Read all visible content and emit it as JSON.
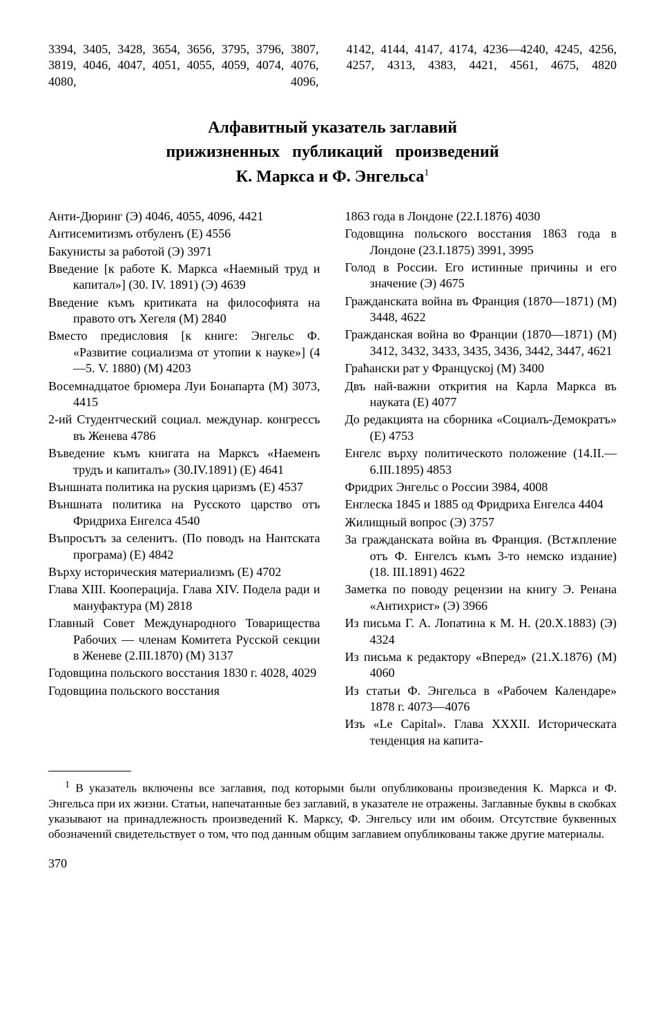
{
  "top": {
    "left": "3394, 3405, 3428, 3654, 3656, 3795, 3796, 3807, 3819, 4046, 4047, 4051, 4055, 4059, 4074, 4076, 4080, 4096,",
    "right": "4142, 4144, 4147, 4174, 4236—4240, 4245, 4256, 4257, 4313, 4383, 4421, 4561, 4675, 4820"
  },
  "heading": {
    "line1": "Алфавитный указатель заглавий",
    "line2": "прижизненных публикаций произведений",
    "line3": "К. Маркса и Ф. Энгельса",
    "note_mark": "1"
  },
  "left_entries": [
    "Анти-Дюринг (Э) 4046, 4055, 4096, 4421",
    "Антисемитизмъ отбуленъ (Е) 4556",
    "Бакунисты за работой (Э) 3971",
    "Введение [к работе К. Маркса «Наем­ный труд и капитал»] (30. IV. 1891) (Э) 4639",
    "Введение къмъ критиката на фило­со­фията на правото отъ Хегеля (М) 2840",
    "Вместо предисловия [к книге: Эн­гельс Ф. «Развитие социализма от утопии к науке»] (4—5. V. 1880) (М) 4203",
    "Восемнадцатое брюмера Луи Бона­парта (М) 3073, 4415",
    "2-ий Студентческий социал. между­нар. конгрессъ въ Женева 4786",
    "Въведение къмъ книгата на Марксъ «Наеменъ трудъ и капиталъ» (30.IV.1891) (Е) 4641",
    "Външната политика на руския ца­ризмъ (Е) 4537",
    "Външната политика на Русското цар­ство отъ Фридриха Енгелса 4540",
    "Въпросътъ за селенитъ. (По поводъ на Нантската програма) (Е) 4842",
    "Върху историческия материализмъ (Е) 4702",
    "Глава XIII. Кооперација. Глава XIV. Подела ради и мануфактура (М) 2818",
    "Главный Совет Международного То­варищества Рабочих — членам Комитета Русской секции в Жене­ве (2.III.1870) (М) 3137",
    "Годовщина польского восстания 1830 г. 4028, 4029",
    "Годовщина польского восстания"
  ],
  "right_entries": [
    "1863 года в Лондоне (22.I.1876) 4030",
    "Годовщина польского восстания 1863 года в Лондоне (23.I.1875) 3991, 3995",
    "Голод в России. Его истинные причи­ны и его значение (Э) 4675",
    "Гражданската война въ Франция (1870—1871) (М) 3448, 4622",
    "Гражданская война во Франции (1870—1871) (М) 3412, 3432, 3433, 3435, 3436, 3442, 3447, 4621",
    "Граћански рат у Француској (М) 3400",
    "Двъ най-важни открития на Карла Маркса въ науката (Е) 4077",
    "До редакцията на сборника «Соци­алъ-Демократъ» (Е) 4753",
    "Енгелс върху политическото положе­ние (14.II.—6.III.1895) 4853",
    "Фридрих Энгельс о России 3984, 4008",
    "Енглеска 1845 и 1885 од Фридриха Енгелса 4404",
    "Жилищный вопрос (Э) 3757",
    "За гражданската война въ Франция. (Встѫпление отъ Ф. Енгелсъ къмъ 3-то немско издание) (18. III.1891) 4622",
    "Заметка по поводу рецензии на книгу Э. Ренана «Антихрист» (Э) 3966",
    "Из письма Г. А. Лопатина к М. Н. (20.X.1883) (Э) 4324",
    "Из письма к редактору «Вперед» (21.X.1876) (М) 4060",
    "Из статьи Ф. Энгельса в «Рабочем Календаре» 1878 г. 4073—4076",
    "Изъ «Le Capital». Глава XXXII. Исто­рическата тенденция на капита-"
  ],
  "footnote": {
    "mark": "1",
    "text": "В указатель включены все заглавия, под которыми были опубликованы произ­ведения К. Маркса и Ф. Энгельса при их жизни. Статьи, напечатанные без за­главий, в указателе не отражены. Заглавные буквы в скобках указывают на принадлежность произведений К. Марксу, Ф. Энгельсу или им обоим. Отсутст­вие буквенных обозначений свидетельствует о том, что под данным общим заглавием опубликованы также другие материалы."
  },
  "page_number": "370"
}
